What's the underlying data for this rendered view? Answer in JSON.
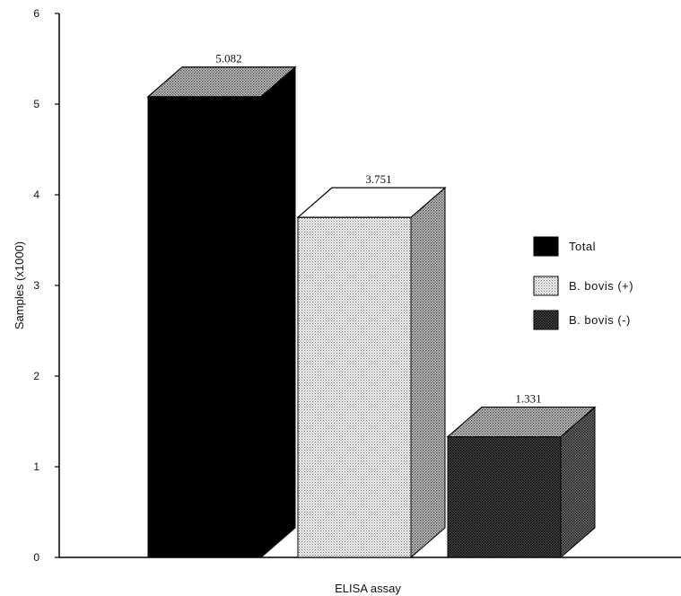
{
  "chart_data": {
    "type": "bar",
    "title": "",
    "xlabel": "ELISA assay",
    "ylabel": "Samples (x1000)",
    "ylim": [
      0,
      6
    ],
    "yticks": [
      "0",
      "1",
      "2",
      "3",
      "4",
      "5",
      "6"
    ],
    "grid": false,
    "legend_position": "right",
    "categories": [
      "Total",
      "B. bovis (+)",
      "B. bovis (-)"
    ],
    "values": [
      5.082,
      3.751,
      1.331
    ],
    "data_labels": [
      "5.082",
      "3.751",
      "1.331"
    ],
    "series": [
      {
        "name": "Total",
        "value": 5.082,
        "style": "solid-black"
      },
      {
        "name": "B. bovis (+)",
        "value": 3.751,
        "style": "light-dotted"
      },
      {
        "name": "B. bovis (-)",
        "value": 1.331,
        "style": "dark-dotted"
      }
    ]
  }
}
